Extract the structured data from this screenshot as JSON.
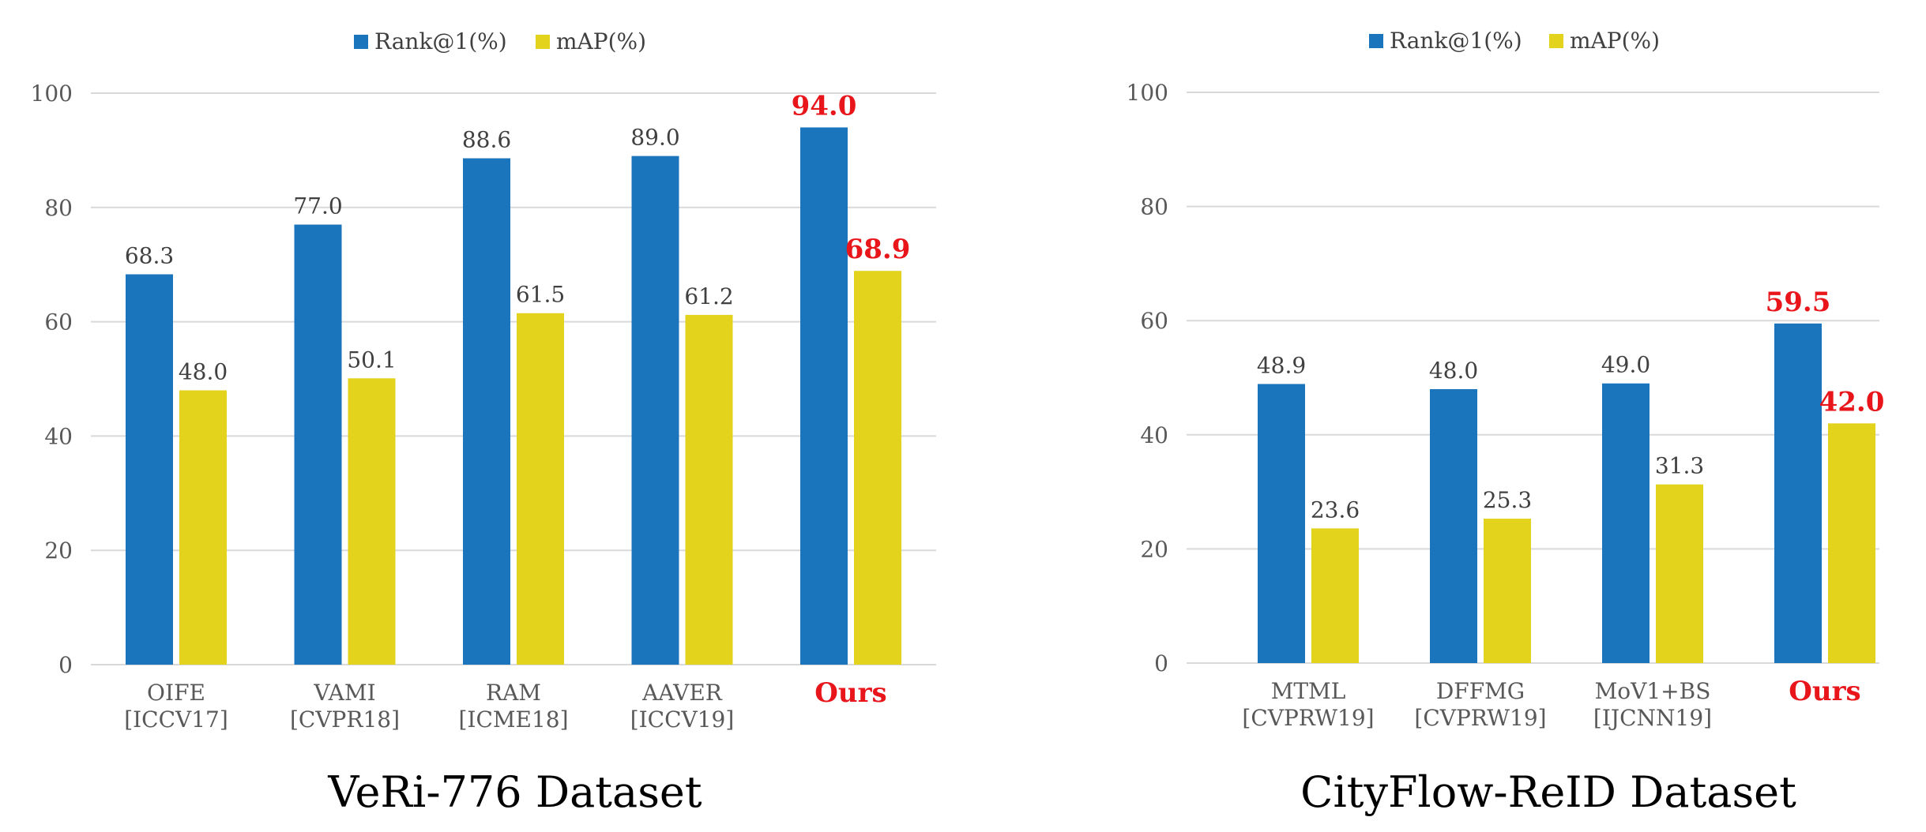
{
  "chart_data": [
    {
      "type": "bar",
      "title": "VeRi-776 Dataset",
      "categories": [
        [
          "OIFE",
          "[ICCV17]"
        ],
        [
          "VAMI",
          "[CVPR18]"
        ],
        [
          "RAM",
          "[ICME18]"
        ],
        [
          "AAVER",
          "[ICCV19]"
        ],
        [
          "Ours"
        ]
      ],
      "highlight_index": 4,
      "series": [
        {
          "name": "Rank@1(%)",
          "color": "#1b75bc",
          "values": [
            68.3,
            77.0,
            88.6,
            89.0,
            94.0
          ],
          "labels": [
            "68.3",
            "77.0",
            "88.6",
            "89.0",
            "94.0"
          ]
        },
        {
          "name": "mAP(%)",
          "color": "#e3d31d",
          "values": [
            48.0,
            50.1,
            61.5,
            61.2,
            68.9
          ],
          "labels": [
            "48.0",
            "50.1",
            "61.5",
            "61.2",
            "68.9"
          ]
        }
      ],
      "ylim": [
        0,
        100
      ],
      "yticks": [
        "0",
        "20",
        "40",
        "60",
        "80",
        "100"
      ],
      "grid": true,
      "legend": "top-center",
      "highlight_color": "#e8151b"
    },
    {
      "type": "bar",
      "title": "CityFlow-ReID Dataset",
      "categories": [
        [
          "MTML",
          "[CVPRW19]"
        ],
        [
          "DFFMG",
          "[CVPRW19]"
        ],
        [
          "MoV1+BS",
          "[IJCNN19]"
        ],
        [
          "Ours"
        ]
      ],
      "highlight_index": 3,
      "series": [
        {
          "name": "Rank@1(%)",
          "color": "#1b75bc",
          "values": [
            48.9,
            48.0,
            49.0,
            59.5
          ],
          "labels": [
            "48.9",
            "48.0",
            "49.0",
            "59.5"
          ]
        },
        {
          "name": "mAP(%)",
          "color": "#e3d31d",
          "values": [
            23.6,
            25.3,
            31.3,
            42.0
          ],
          "labels": [
            "23.6",
            "25.3",
            "31.3",
            "42.0"
          ]
        }
      ],
      "ylim": [
        0,
        100
      ],
      "yticks": [
        "0",
        "20",
        "40",
        "60",
        "80",
        "100"
      ],
      "grid": true,
      "legend": "top-center",
      "highlight_color": "#e8151b"
    }
  ]
}
